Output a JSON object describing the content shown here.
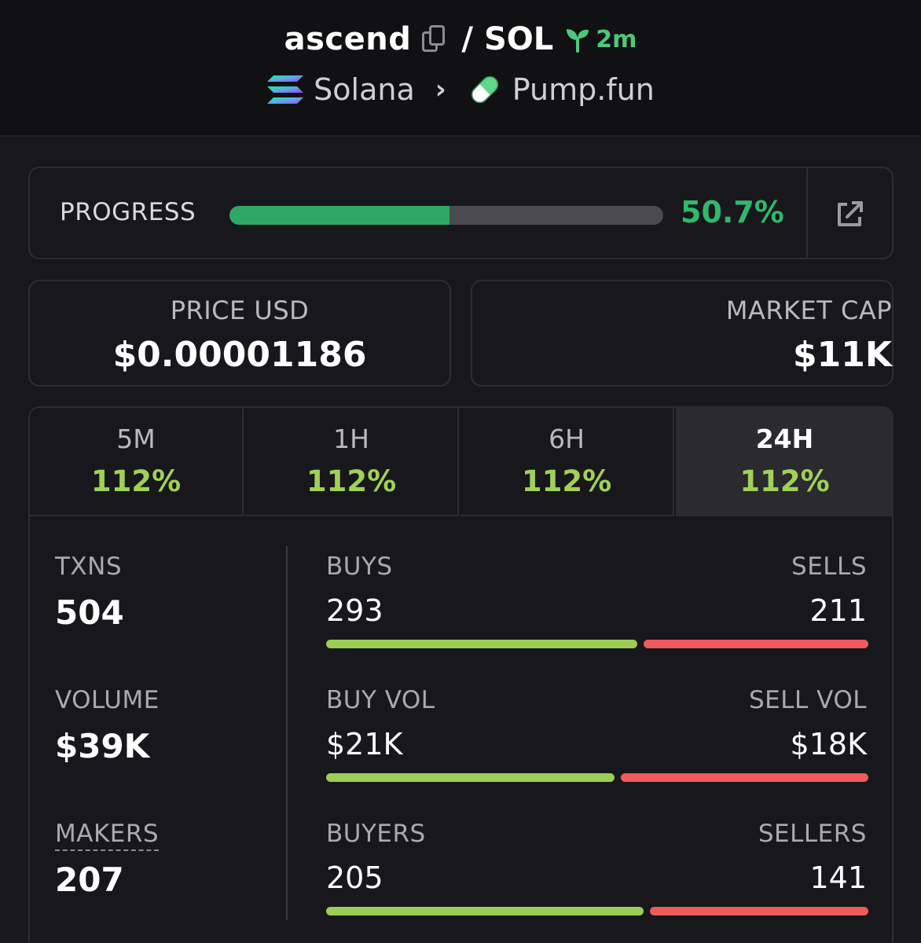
{
  "header": {
    "token_name": "ascend",
    "slash": "/",
    "quote": "SOL",
    "age": "2m",
    "chain": "Solana",
    "dex": "Pump.fun"
  },
  "progress": {
    "label": "PROGRESS",
    "value_text": "50.7%",
    "value": 50.7
  },
  "price": {
    "label": "PRICE USD",
    "value": "$0.00001186"
  },
  "market_cap": {
    "label": "MARKET CAP",
    "value": "$11K"
  },
  "tabs": [
    {
      "label": "5M",
      "change": "112%"
    },
    {
      "label": "1H",
      "change": "112%"
    },
    {
      "label": "6H",
      "change": "112%"
    },
    {
      "label": "24H",
      "change": "112%"
    }
  ],
  "active_tab": "24H",
  "stats": {
    "txns": {
      "label": "TXNS",
      "value": "504"
    },
    "volume": {
      "label": "VOLUME",
      "value": "$39K"
    },
    "makers": {
      "label": "MAKERS",
      "value": "207"
    },
    "buys": {
      "label": "BUYS",
      "value": "293"
    },
    "sells": {
      "label": "SELLS",
      "value": "211"
    },
    "buy_vol": {
      "label": "BUY VOL",
      "value": "$21K"
    },
    "sell_vol": {
      "label": "SELL VOL",
      "value": "$18K"
    },
    "buyers": {
      "label": "BUYERS",
      "value": "205"
    },
    "sellers": {
      "label": "SELLERS",
      "value": "141"
    }
  },
  "ratios": {
    "buys_share": 0.581,
    "buy_vol_share": 0.538,
    "buyers_share": 0.593
  },
  "colors": {
    "positive": "#9fd157",
    "progress_fill": "#2fa866",
    "buy_bar": "#9ccd57",
    "sell_bar": "#ef5a5a",
    "age": "#4ec77a"
  },
  "icons": [
    "copy-icon",
    "sprout-icon",
    "solana-logo-icon",
    "chevron-right-icon",
    "pill-icon",
    "external-link-icon"
  ]
}
